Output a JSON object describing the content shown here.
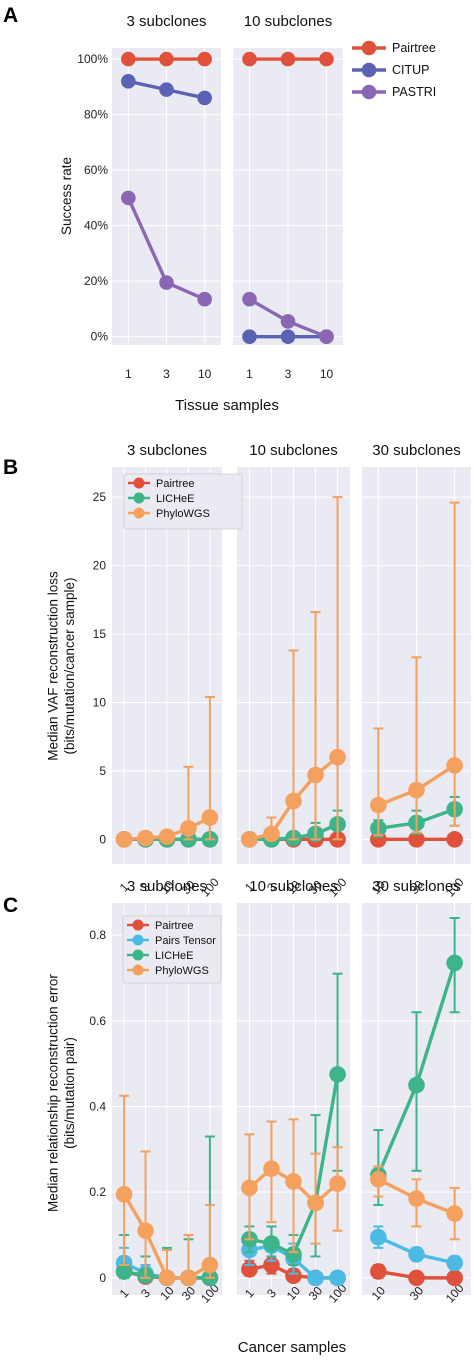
{
  "colors": {
    "Pairtree": "#e0513c",
    "CITUP": "#5a62b3",
    "PASTRI": "#8a66b4",
    "LICHeE": "#3db489",
    "PhyloWGS": "#f4a05e",
    "Pairs Tensor": "#4cbbe4",
    "panel_bg": "#eaeaf2",
    "grid": "#ffffff"
  },
  "chart_data": [
    {
      "id": "A",
      "panel_letter": "A",
      "type": "line",
      "ylabel": "Success rate",
      "xlabel": "Tissue samples",
      "yticks": [
        0,
        20,
        40,
        60,
        80,
        100
      ],
      "ytick_labels": [
        "0%",
        "20%",
        "40%",
        "60%",
        "80%",
        "100%"
      ],
      "ylim": [
        -3,
        104
      ],
      "legend": [
        "Pairtree",
        "CITUP",
        "PASTRI"
      ],
      "legend_position": "right",
      "subplots": [
        {
          "title": "3 subclones",
          "x": [
            "1",
            "3",
            "10"
          ],
          "series": [
            {
              "name": "Pairtree",
              "values": [
                100,
                100,
                100
              ]
            },
            {
              "name": "CITUP",
              "values": [
                92,
                89,
                86
              ]
            },
            {
              "name": "PASTRI",
              "values": [
                50,
                19.5,
                13.5
              ]
            }
          ]
        },
        {
          "title": "10 subclones",
          "x": [
            "1",
            "3",
            "10"
          ],
          "series": [
            {
              "name": "Pairtree",
              "values": [
                100,
                100,
                100
              ]
            },
            {
              "name": "CITUP",
              "values": [
                0,
                0,
                0
              ]
            },
            {
              "name": "PASTRI",
              "values": [
                13.5,
                5.5,
                0
              ]
            }
          ]
        }
      ]
    },
    {
      "id": "B",
      "panel_letter": "B",
      "type": "line",
      "error_bars": true,
      "ylabel": "Median VAF reconstruction loss\n(bits/mutation/cancer sample)",
      "xlabel": "Cancer samples",
      "yticks": [
        0,
        5,
        10,
        15,
        20,
        25
      ],
      "ytick_labels": [
        "0",
        "5",
        "10",
        "15",
        "20",
        "25"
      ],
      "ylim": [
        -1.8,
        27.2
      ],
      "legend": [
        "Pairtree",
        "LICHeE",
        "PhyloWGS"
      ],
      "legend_position": "top-left",
      "subplots": [
        {
          "title": "3 subclones",
          "x": [
            "1",
            "3",
            "10",
            "30",
            "100"
          ],
          "series": [
            {
              "name": "Pairtree",
              "values": [
                0,
                0,
                0,
                0,
                0
              ]
            },
            {
              "name": "LICHeE",
              "values": [
                0,
                0,
                0,
                0,
                0
              ]
            },
            {
              "name": "PhyloWGS",
              "values": [
                0,
                0.1,
                0.2,
                0.8,
                1.6
              ],
              "err_low": [
                0,
                0,
                0,
                0,
                0
              ],
              "err_high": [
                0,
                0.2,
                0.5,
                5.3,
                10.4
              ]
            }
          ]
        },
        {
          "title": "10 subclones",
          "x": [
            "1",
            "3",
            "10",
            "30",
            "100"
          ],
          "series": [
            {
              "name": "Pairtree",
              "values": [
                0,
                0,
                0,
                0,
                0
              ]
            },
            {
              "name": "LICHeE",
              "values": [
                0,
                0,
                0.1,
                0.4,
                1.1
              ],
              "err_low": [
                0,
                0,
                0,
                0,
                0
              ],
              "err_high": [
                0,
                0,
                0.4,
                1.2,
                2.1
              ]
            },
            {
              "name": "PhyloWGS",
              "values": [
                0,
                0.4,
                2.8,
                4.7,
                6.0
              ],
              "err_low": [
                0,
                0,
                0,
                0,
                0
              ],
              "err_high": [
                0,
                1.6,
                13.8,
                16.6,
                25.0
              ]
            }
          ]
        },
        {
          "title": "30 subclones",
          "x": [
            "10",
            "30",
            "100"
          ],
          "series": [
            {
              "name": "Pairtree",
              "values": [
                0,
                0,
                0
              ]
            },
            {
              "name": "LICHeE",
              "values": [
                0.8,
                1.2,
                2.2
              ],
              "err_low": [
                0.2,
                0.4,
                1.0
              ],
              "err_high": [
                1.4,
                2.1,
                3.1
              ]
            },
            {
              "name": "PhyloWGS",
              "values": [
                2.5,
                3.6,
                5.4
              ],
              "err_low": [
                0.3,
                0.5,
                1.0
              ],
              "err_high": [
                8.1,
                13.3,
                24.6
              ]
            }
          ]
        }
      ]
    },
    {
      "id": "C",
      "panel_letter": "C",
      "type": "line",
      "error_bars": true,
      "ylabel": "Median relationship reconstruction error\n(bits/mutation pair)",
      "xlabel": "Cancer samples",
      "yticks": [
        0,
        0.2,
        0.4,
        0.6,
        0.8
      ],
      "ytick_labels": [
        "0",
        "0.2",
        "0.4",
        "0.6",
        "0.8"
      ],
      "ylim": [
        -0.04,
        0.875
      ],
      "legend": [
        "Pairtree",
        "Pairs Tensor",
        "LICHeE",
        "PhyloWGS"
      ],
      "legend_position": "top-left",
      "subplots": [
        {
          "title": "3 subclones",
          "x": [
            "1",
            "3",
            "10",
            "30",
            "100"
          ],
          "series": [
            {
              "name": "Pairtree",
              "values": [
                0.015,
                0.003,
                0,
                0,
                0
              ],
              "err_low": [
                0,
                0,
                0,
                0,
                0
              ],
              "err_high": [
                0.03,
                0.01,
                0,
                0,
                0
              ]
            },
            {
              "name": "Pairs Tensor",
              "values": [
                0.035,
                0.01,
                0,
                0,
                0
              ],
              "err_low": [
                0,
                0,
                0,
                0,
                0
              ],
              "err_high": [
                0.07,
                0.03,
                0,
                0,
                0
              ]
            },
            {
              "name": "LICHeE",
              "values": [
                0.015,
                0.005,
                0,
                0,
                0
              ],
              "err_low": [
                0,
                0,
                0,
                0,
                0
              ],
              "err_high": [
                0.1,
                0.05,
                0.07,
                0.09,
                0.33
              ]
            },
            {
              "name": "PhyloWGS",
              "values": [
                0.195,
                0.11,
                0,
                0,
                0.03
              ],
              "err_low": [
                0.03,
                0,
                0,
                0,
                0
              ],
              "err_high": [
                0.425,
                0.295,
                0.065,
                0.1,
                0.17
              ]
            }
          ]
        },
        {
          "title": "10 subclones",
          "x": [
            "1",
            "3",
            "10",
            "30",
            "100"
          ],
          "series": [
            {
              "name": "Pairtree",
              "values": [
                0.02,
                0.03,
                0.005,
                0,
                0
              ],
              "err_low": [
                0.005,
                0.01,
                0,
                0,
                0
              ],
              "err_high": [
                0.04,
                0.05,
                0.02,
                0,
                0
              ]
            },
            {
              "name": "Pairs Tensor",
              "values": [
                0.065,
                0.075,
                0.045,
                0,
                0
              ],
              "err_low": [
                0.03,
                0.04,
                0.01,
                0,
                0
              ],
              "err_high": [
                0.1,
                0.12,
                0.08,
                0,
                0
              ]
            },
            {
              "name": "LICHeE",
              "values": [
                0.09,
                0.08,
                0.055,
                0.175,
                0.475
              ],
              "err_low": [
                0.06,
                0.05,
                0.03,
                0.05,
                0.25
              ],
              "err_high": [
                0.12,
                0.12,
                0.1,
                0.38,
                0.71
              ]
            },
            {
              "name": "PhyloWGS",
              "values": [
                0.21,
                0.255,
                0.225,
                0.175,
                0.22
              ],
              "err_low": [
                0.09,
                0.13,
                0.06,
                0.08,
                0.11
              ],
              "err_high": [
                0.335,
                0.365,
                0.37,
                0.29,
                0.305
              ]
            }
          ]
        },
        {
          "title": "30 subclones",
          "x": [
            "10",
            "30",
            "100"
          ],
          "series": [
            {
              "name": "Pairtree",
              "values": [
                0.015,
                0,
                0
              ],
              "err_low": [
                0,
                0,
                0
              ],
              "err_high": [
                0.03,
                0,
                0
              ]
            },
            {
              "name": "Pairs Tensor",
              "values": [
                0.095,
                0.055,
                0.035
              ],
              "err_low": [
                0.07,
                0.04,
                0.02
              ],
              "err_high": [
                0.12,
                0.07,
                0.05
              ]
            },
            {
              "name": "LICHeE",
              "values": [
                0.24,
                0.45,
                0.735
              ],
              "err_low": [
                0.17,
                0.25,
                0.62
              ],
              "err_high": [
                0.345,
                0.62,
                0.84
              ]
            },
            {
              "name": "PhyloWGS",
              "values": [
                0.23,
                0.185,
                0.15
              ],
              "err_low": [
                0.19,
                0.12,
                0.09
              ],
              "err_high": [
                0.26,
                0.23,
                0.21
              ]
            }
          ]
        }
      ]
    }
  ]
}
